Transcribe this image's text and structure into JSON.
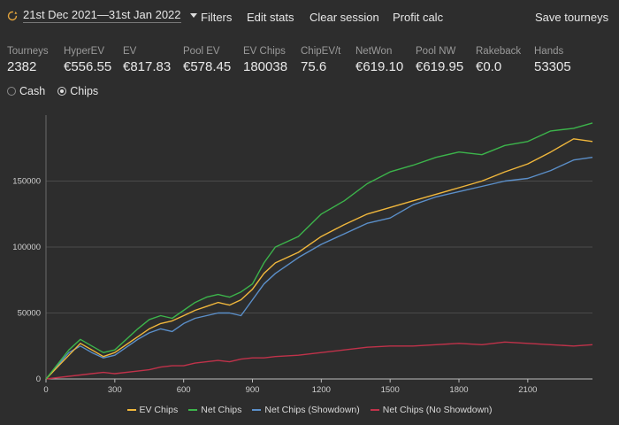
{
  "toolbar": {
    "date_range": "21st Dec 2021—31st Jan 2022",
    "filters": "Filters",
    "edit_stats": "Edit stats",
    "clear_session": "Clear session",
    "profit_calc": "Profit calc",
    "save_tourneys": "Save tourneys"
  },
  "stats": [
    {
      "label": "Tourneys",
      "value": "2382"
    },
    {
      "label": "HyperEV",
      "value": "€556.55"
    },
    {
      "label": "EV",
      "value": "€817.83"
    },
    {
      "label": "Pool EV",
      "value": "€578.45"
    },
    {
      "label": "EV Chips",
      "value": "180038"
    },
    {
      "label": "ChipEV/t",
      "value": "75.6"
    },
    {
      "label": "NetWon",
      "value": "€619.10"
    },
    {
      "label": "Pool NW",
      "value": "€619.95"
    },
    {
      "label": "Rakeback",
      "value": "€0.0"
    },
    {
      "label": "Hands",
      "value": "53305"
    }
  ],
  "mode": {
    "cash": "Cash",
    "chips": "Chips",
    "selected": "chips"
  },
  "colors": {
    "ev": "#f0b73c",
    "net": "#3cb44b",
    "showdown": "#5b8fc9",
    "noshowdown": "#c0324a"
  },
  "chart_data": {
    "type": "line",
    "xlim": [
      0,
      2382
    ],
    "ylim": [
      0,
      200000
    ],
    "x_ticks": [
      "0",
      "300",
      "600",
      "900",
      "1200",
      "1500",
      "1800",
      "2100"
    ],
    "y_ticks": [
      "0",
      "50000",
      "100000",
      "150000"
    ],
    "grid": true,
    "legend_position": "bottom",
    "x": [
      0,
      100,
      150,
      200,
      250,
      300,
      400,
      450,
      500,
      550,
      600,
      650,
      700,
      750,
      800,
      850,
      900,
      950,
      1000,
      1100,
      1200,
      1300,
      1400,
      1500,
      1600,
      1700,
      1800,
      1900,
      2000,
      2100,
      2200,
      2300,
      2382
    ],
    "series": [
      {
        "name": "EV Chips",
        "color": "#f0b73c",
        "values": [
          0,
          18000,
          27000,
          22000,
          17000,
          20000,
          32000,
          38000,
          42000,
          44000,
          48000,
          52000,
          55000,
          58000,
          56000,
          60000,
          68000,
          80000,
          88000,
          96000,
          108000,
          117000,
          125000,
          130000,
          135000,
          140000,
          145000,
          150000,
          157000,
          163000,
          172000,
          182000,
          180000
        ]
      },
      {
        "name": "Net Chips",
        "color": "#3cb44b",
        "values": [
          0,
          22000,
          30000,
          25000,
          20000,
          22000,
          38000,
          45000,
          48000,
          46000,
          52000,
          58000,
          62000,
          64000,
          62000,
          66000,
          72000,
          88000,
          100000,
          108000,
          125000,
          135000,
          148000,
          157000,
          162000,
          168000,
          172000,
          170000,
          177000,
          180000,
          188000,
          190000,
          194000
        ]
      },
      {
        "name": "Net Chips (Showdown)",
        "color": "#5b8fc9",
        "values": [
          0,
          20000,
          25000,
          20000,
          16000,
          18000,
          30000,
          35000,
          38000,
          36000,
          42000,
          46000,
          48000,
          50000,
          50000,
          48000,
          60000,
          72000,
          80000,
          92000,
          102000,
          110000,
          118000,
          122000,
          132000,
          138000,
          142000,
          146000,
          150000,
          152000,
          158000,
          166000,
          168000
        ]
      },
      {
        "name": "Net Chips (No Showdown)",
        "color": "#c0324a",
        "values": [
          0,
          2000,
          3000,
          4000,
          5000,
          4000,
          6000,
          7000,
          9000,
          10000,
          10000,
          12000,
          13000,
          14000,
          13000,
          15000,
          16000,
          16000,
          17000,
          18000,
          20000,
          22000,
          24000,
          25000,
          25000,
          26000,
          27000,
          26000,
          28000,
          27000,
          26000,
          25000,
          26000
        ]
      }
    ]
  }
}
